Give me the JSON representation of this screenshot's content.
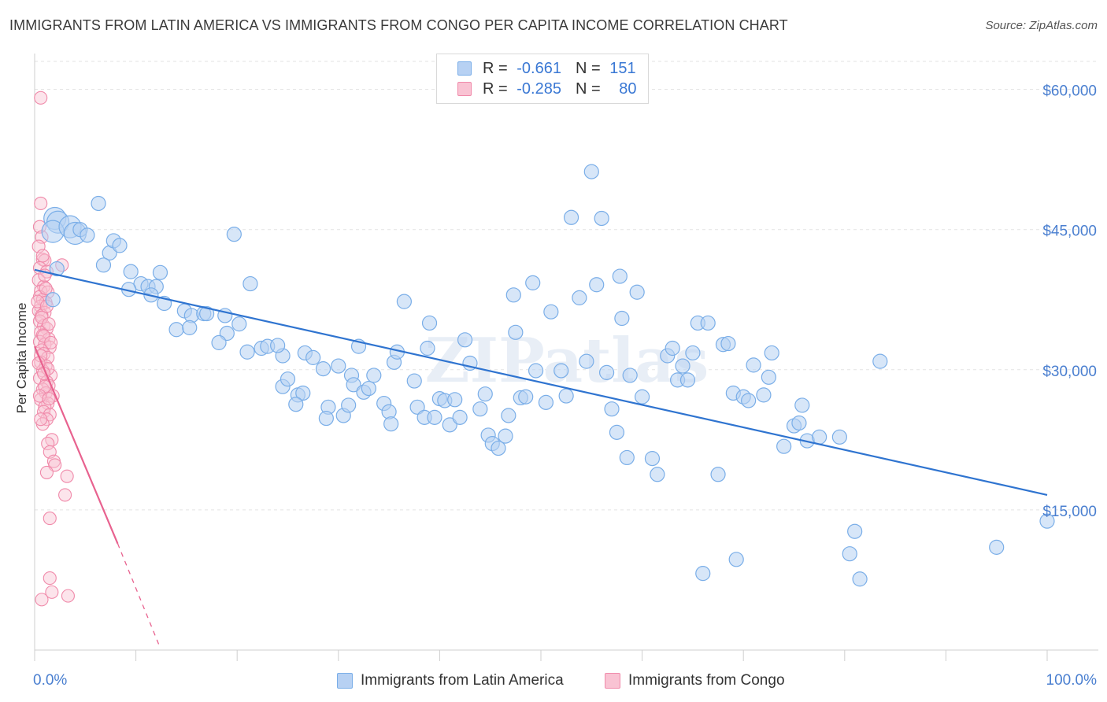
{
  "title": "IMMIGRANTS FROM LATIN AMERICA VS IMMIGRANTS FROM CONGO PER CAPITA INCOME CORRELATION CHART",
  "source": "Source: ZipAtlas.com",
  "watermark": "ZIPatlas",
  "legend": {
    "rows": [
      {
        "r_label": "R =",
        "r_value": "-0.661",
        "n_label": "N =",
        "n_value": "151"
      },
      {
        "r_label": "R =",
        "r_value": "-0.285",
        "n_label": "N =",
        "n_value": "80"
      }
    ]
  },
  "bottom_legend": {
    "series1": "Immigrants from Latin America",
    "series2": "Immigrants from Congo"
  },
  "colors": {
    "blue": "#7aaee8",
    "blue_fill": "#b7d1f3",
    "blue_line": "#2f74d0",
    "pink": "#f08aaa",
    "pink_fill": "#f9c3d3",
    "pink_line": "#e8628f",
    "tick_text": "#4a7fd0"
  },
  "chart_data": {
    "type": "scatter",
    "xlabel_left": "0.0%",
    "xlabel_right": "100.0%",
    "ylabel": "Per Capita Income",
    "xlim": [
      0,
      100
    ],
    "ylim": [
      0,
      63000
    ],
    "yticks": [
      15000,
      30000,
      45000,
      60000
    ],
    "ytick_labels": [
      "$15,000",
      "$30,000",
      "$45,000",
      "$60,000"
    ],
    "grid": true,
    "series": [
      {
        "name": "Immigrants from Latin America",
        "trend": {
          "x": [
            0,
            100
          ],
          "y": [
            40700,
            16600
          ]
        },
        "points": [
          [
            2.0,
            46200
          ],
          [
            2.3,
            45800
          ],
          [
            1.8,
            44800
          ],
          [
            3.5,
            45300
          ],
          [
            4.0,
            44600
          ],
          [
            4.5,
            45000
          ],
          [
            5.2,
            44400
          ],
          [
            6.3,
            47800
          ],
          [
            7.4,
            42500
          ],
          [
            7.8,
            43800
          ],
          [
            8.4,
            43300
          ],
          [
            6.8,
            41200
          ],
          [
            9.5,
            40500
          ],
          [
            10.5,
            39200
          ],
          [
            11.2,
            38900
          ],
          [
            12.4,
            40400
          ],
          [
            9.3,
            38600
          ],
          [
            12.0,
            38900
          ],
          [
            11.5,
            38000
          ],
          [
            12.8,
            37100
          ],
          [
            14.8,
            36300
          ],
          [
            15.5,
            35800
          ],
          [
            14.0,
            34300
          ],
          [
            15.3,
            34500
          ],
          [
            16.7,
            36000
          ],
          [
            17.0,
            36000
          ],
          [
            18.8,
            35800
          ],
          [
            19.0,
            33900
          ],
          [
            20.2,
            34900
          ],
          [
            18.2,
            32900
          ],
          [
            19.7,
            44500
          ],
          [
            21.3,
            39200
          ],
          [
            22.4,
            32300
          ],
          [
            23.0,
            32500
          ],
          [
            24.5,
            31500
          ],
          [
            21.0,
            31900
          ],
          [
            24.0,
            32600
          ],
          [
            26.7,
            31800
          ],
          [
            27.5,
            31300
          ],
          [
            24.5,
            28200
          ],
          [
            25.0,
            29000
          ],
          [
            26.0,
            27300
          ],
          [
            26.5,
            27500
          ],
          [
            25.8,
            26300
          ],
          [
            28.5,
            30100
          ],
          [
            29.0,
            26000
          ],
          [
            28.8,
            24800
          ],
          [
            30.0,
            30400
          ],
          [
            30.5,
            25100
          ],
          [
            31.0,
            26200
          ],
          [
            31.3,
            29400
          ],
          [
            32.0,
            32500
          ],
          [
            31.5,
            28400
          ],
          [
            32.5,
            27600
          ],
          [
            33.0,
            28000
          ],
          [
            33.5,
            29400
          ],
          [
            34.5,
            26400
          ],
          [
            35.0,
            25500
          ],
          [
            35.2,
            24200
          ],
          [
            35.5,
            30800
          ],
          [
            35.8,
            31900
          ],
          [
            36.5,
            37300
          ],
          [
            37.5,
            28800
          ],
          [
            37.8,
            26000
          ],
          [
            38.5,
            24900
          ],
          [
            38.8,
            32300
          ],
          [
            39.0,
            35000
          ],
          [
            39.5,
            24900
          ],
          [
            40.0,
            26900
          ],
          [
            40.5,
            26700
          ],
          [
            41.0,
            24100
          ],
          [
            41.5,
            26800
          ],
          [
            42.0,
            24900
          ],
          [
            42.5,
            33200
          ],
          [
            43.0,
            30700
          ],
          [
            44.0,
            25800
          ],
          [
            44.5,
            27400
          ],
          [
            44.8,
            23000
          ],
          [
            45.2,
            22100
          ],
          [
            45.8,
            21600
          ],
          [
            46.5,
            22900
          ],
          [
            46.8,
            25100
          ],
          [
            47.5,
            34000
          ],
          [
            47.3,
            38000
          ],
          [
            48.0,
            27000
          ],
          [
            48.5,
            27100
          ],
          [
            49.5,
            29900
          ],
          [
            49.2,
            39300
          ],
          [
            50.5,
            26500
          ],
          [
            51.0,
            36200
          ],
          [
            52.0,
            29900
          ],
          [
            52.5,
            27200
          ],
          [
            53.0,
            46300
          ],
          [
            53.8,
            37700
          ],
          [
            54.5,
            30900
          ],
          [
            55.0,
            51200
          ],
          [
            55.5,
            39100
          ],
          [
            56.0,
            46200
          ],
          [
            56.5,
            29700
          ],
          [
            57.0,
            25800
          ],
          [
            57.5,
            23300
          ],
          [
            57.8,
            40000
          ],
          [
            58.0,
            35500
          ],
          [
            58.5,
            20600
          ],
          [
            58.8,
            29400
          ],
          [
            59.5,
            38300
          ],
          [
            60.0,
            27100
          ],
          [
            61.0,
            20500
          ],
          [
            61.5,
            18800
          ],
          [
            62.5,
            31500
          ],
          [
            63.0,
            32300
          ],
          [
            63.5,
            28900
          ],
          [
            64.0,
            30400
          ],
          [
            64.5,
            28900
          ],
          [
            65.0,
            31800
          ],
          [
            65.5,
            35000
          ],
          [
            66.0,
            8200
          ],
          [
            66.5,
            35000
          ],
          [
            67.5,
            18800
          ],
          [
            68.0,
            32700
          ],
          [
            68.5,
            32800
          ],
          [
            69.0,
            27500
          ],
          [
            69.3,
            9700
          ],
          [
            70.0,
            27100
          ],
          [
            70.5,
            26700
          ],
          [
            71.0,
            30500
          ],
          [
            72.0,
            27300
          ],
          [
            72.5,
            29200
          ],
          [
            72.8,
            31800
          ],
          [
            74.0,
            21800
          ],
          [
            75.0,
            24000
          ],
          [
            75.5,
            24300
          ],
          [
            75.8,
            26200
          ],
          [
            76.3,
            22400
          ],
          [
            77.5,
            22800
          ],
          [
            79.5,
            22800
          ],
          [
            80.5,
            10300
          ],
          [
            81.0,
            12700
          ],
          [
            81.5,
            7600
          ],
          [
            83.5,
            30900
          ],
          [
            95.0,
            11000
          ],
          [
            100.0,
            13800
          ],
          [
            2.2,
            40800
          ],
          [
            1.8,
            37500
          ]
        ],
        "sizes_large_first": 5
      },
      {
        "name": "Immigrants from Congo",
        "trend": {
          "x_solid": [
            0,
            8.2
          ],
          "y_solid": [
            32500,
            11400
          ],
          "x_dash": [
            8.2,
            12.3
          ],
          "y_dash": [
            11400,
            500
          ]
        },
        "points": [
          [
            0.6,
            59100
          ],
          [
            0.6,
            47800
          ],
          [
            0.5,
            45300
          ],
          [
            0.7,
            44200
          ],
          [
            0.4,
            43200
          ],
          [
            0.8,
            41800
          ],
          [
            1.0,
            41700
          ],
          [
            2.7,
            41200
          ],
          [
            0.5,
            40900
          ],
          [
            1.2,
            40500
          ],
          [
            0.4,
            39600
          ],
          [
            0.9,
            38900
          ],
          [
            0.6,
            38400
          ],
          [
            1.3,
            38300
          ],
          [
            0.5,
            37800
          ],
          [
            0.8,
            37500
          ],
          [
            1.1,
            37200
          ],
          [
            0.6,
            36800
          ],
          [
            0.4,
            36300
          ],
          [
            1.0,
            36100
          ],
          [
            0.7,
            35800
          ],
          [
            0.5,
            35200
          ],
          [
            0.9,
            34700
          ],
          [
            1.2,
            34400
          ],
          [
            0.6,
            34000
          ],
          [
            0.8,
            33700
          ],
          [
            1.4,
            33300
          ],
          [
            0.5,
            33000
          ],
          [
            1.0,
            32700
          ],
          [
            1.5,
            32400
          ],
          [
            0.7,
            32100
          ],
          [
            0.9,
            31700
          ],
          [
            1.3,
            31300
          ],
          [
            0.6,
            30800
          ],
          [
            1.1,
            30400
          ],
          [
            0.8,
            29900
          ],
          [
            1.6,
            29400
          ],
          [
            0.5,
            29100
          ],
          [
            1.2,
            28700
          ],
          [
            1.4,
            28300
          ],
          [
            0.8,
            27900
          ],
          [
            1.1,
            27500
          ],
          [
            1.8,
            27200
          ],
          [
            0.6,
            26800
          ],
          [
            1.3,
            26400
          ],
          [
            1.0,
            26000
          ],
          [
            0.9,
            25500
          ],
          [
            1.5,
            25200
          ],
          [
            1.2,
            24700
          ],
          [
            0.8,
            24200
          ],
          [
            1.7,
            22500
          ],
          [
            1.3,
            22100
          ],
          [
            1.5,
            21200
          ],
          [
            1.9,
            20200
          ],
          [
            2.0,
            19800
          ],
          [
            1.2,
            19000
          ],
          [
            3.2,
            18600
          ],
          [
            3.0,
            16600
          ],
          [
            1.5,
            14100
          ],
          [
            1.5,
            7700
          ],
          [
            1.7,
            6200
          ],
          [
            0.7,
            5400
          ],
          [
            3.3,
            5800
          ],
          [
            0.3,
            37300
          ],
          [
            0.6,
            31500
          ],
          [
            1.0,
            28200
          ],
          [
            1.3,
            30100
          ],
          [
            0.7,
            35600
          ],
          [
            1.0,
            40100
          ],
          [
            0.5,
            27200
          ],
          [
            1.4,
            26900
          ],
          [
            0.9,
            33600
          ],
          [
            1.1,
            38700
          ],
          [
            0.8,
            42200
          ],
          [
            0.4,
            30700
          ],
          [
            1.6,
            32900
          ],
          [
            0.6,
            24700
          ],
          [
            1.2,
            36800
          ],
          [
            0.9,
            29600
          ],
          [
            1.4,
            34900
          ]
        ]
      }
    ]
  }
}
